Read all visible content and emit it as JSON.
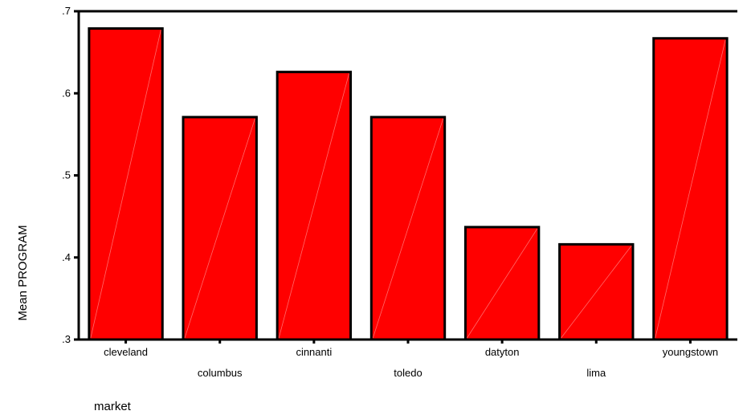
{
  "chart_data": {
    "type": "bar",
    "title": "",
    "xlabel": "market",
    "ylabel": "Mean PROGRAM",
    "categories": [
      "cleveland",
      "columbus",
      "cinnanti",
      "toledo",
      "datyton",
      "lima",
      "youngstown"
    ],
    "values": [
      0.679,
      0.571,
      0.626,
      0.571,
      0.437,
      0.416,
      0.667
    ],
    "ylim": [
      0.3,
      0.7
    ],
    "yticks": [
      ".3",
      ".4",
      ".5",
      ".6",
      ".7"
    ],
    "grid": false,
    "legend": "none",
    "bar_color": "#ff0000",
    "border_color": "#000000"
  }
}
